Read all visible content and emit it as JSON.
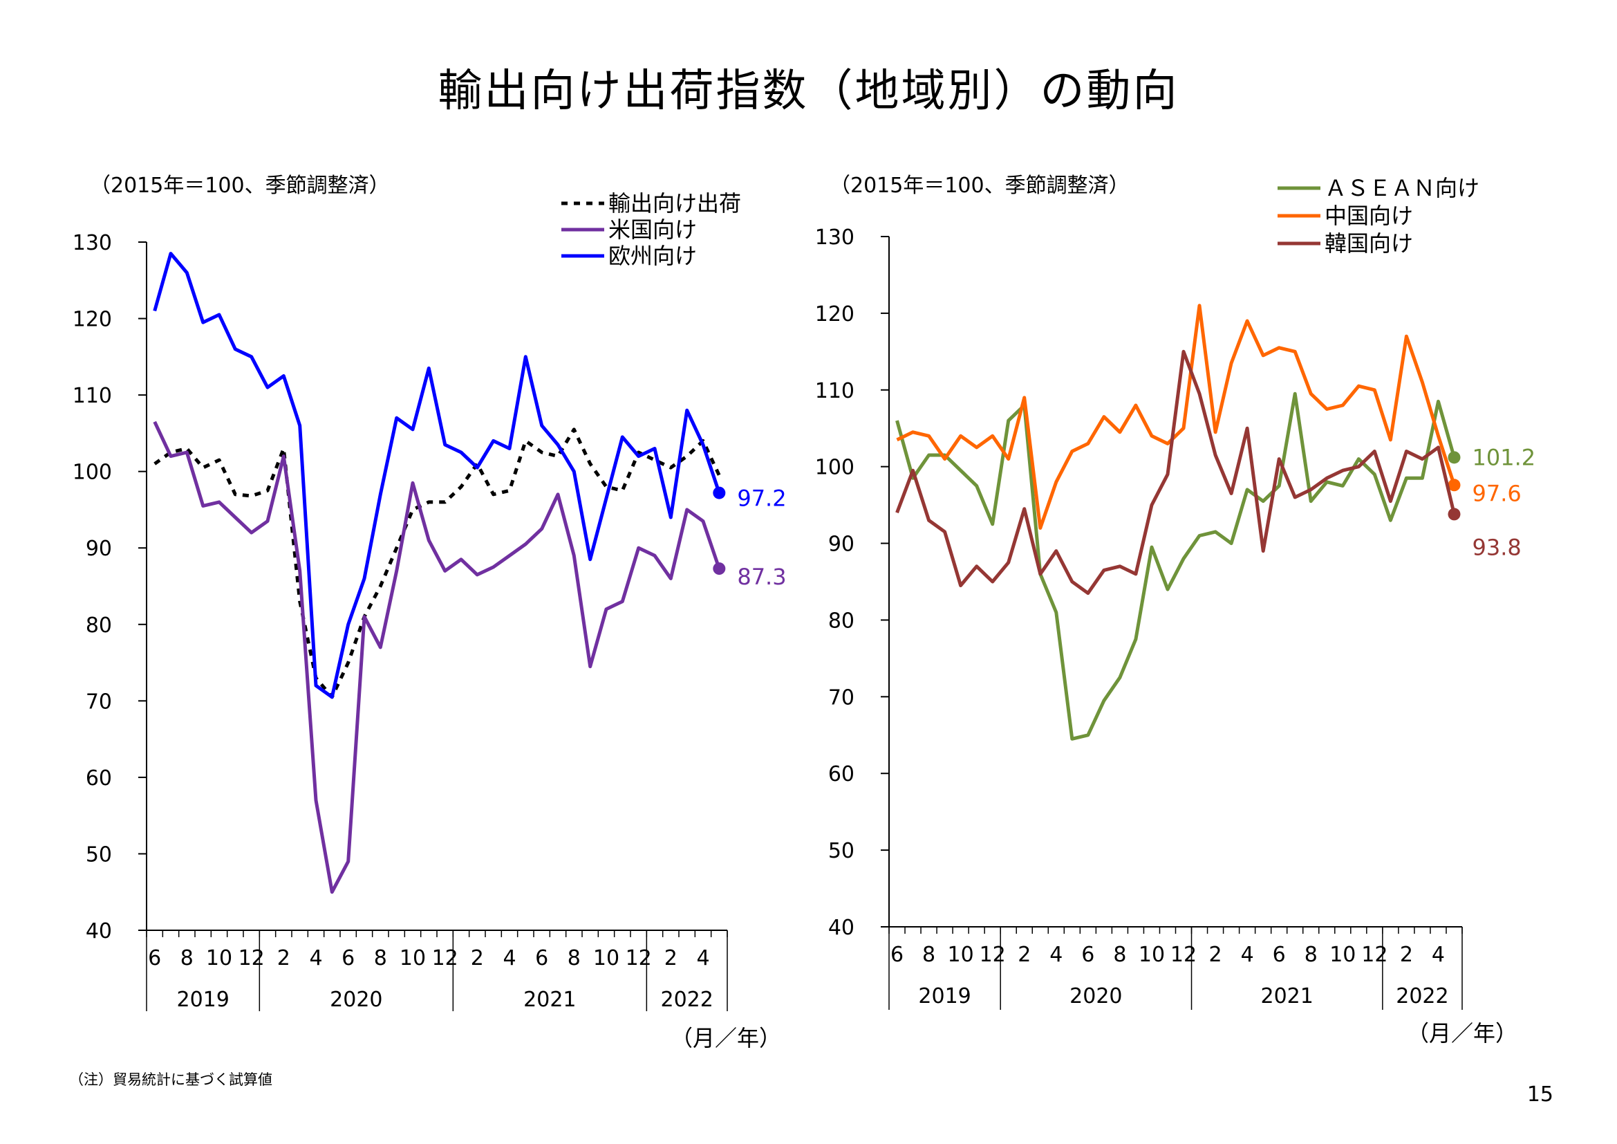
{
  "title": "輸出向け出荷指数（地域別）の動向",
  "note": "（注）貿易統計に基づく試算値",
  "page_number": "15",
  "chart_data": [
    {
      "type": "line",
      "unit_label": "（2015年＝100、季節調整済）",
      "x_axis_label": "（月／年）",
      "ylim": [
        40,
        130
      ],
      "y_ticks": [
        "130",
        "120",
        "110",
        "100",
        "90",
        "80",
        "70",
        "60",
        "50",
        "40"
      ],
      "month_labels": [
        "6",
        "8",
        "10",
        "12",
        "2",
        "4",
        "6",
        "8",
        "10",
        "12",
        "2",
        "4",
        "6",
        "8",
        "10",
        "12",
        "2",
        "4"
      ],
      "year_labels": [
        "2019",
        "2020",
        "2021",
        "2022"
      ],
      "legend_position": "top-right",
      "x": [
        "2019-06",
        "2019-07",
        "2019-08",
        "2019-09",
        "2019-10",
        "2019-11",
        "2019-12",
        "2020-01",
        "2020-02",
        "2020-03",
        "2020-04",
        "2020-05",
        "2020-06",
        "2020-07",
        "2020-08",
        "2020-09",
        "2020-10",
        "2020-11",
        "2020-12",
        "2021-01",
        "2021-02",
        "2021-03",
        "2021-04",
        "2021-05",
        "2021-06",
        "2021-07",
        "2021-08",
        "2021-09",
        "2021-10",
        "2021-11",
        "2021-12",
        "2022-01",
        "2022-02",
        "2022-03",
        "2022-04",
        "2022-05"
      ],
      "series": [
        {
          "name": "輸出向け出荷",
          "color": "#000000",
          "dashed": true,
          "values": [
            101,
            102.5,
            103,
            100.5,
            101.5,
            97,
            96.8,
            97.5,
            103,
            83,
            73,
            70.5,
            75,
            81,
            85,
            90,
            95,
            96,
            96,
            98,
            101,
            97,
            97.5,
            104,
            102.5,
            102,
            105.5,
            101,
            98,
            97.5,
            102.5,
            101.5,
            100.5,
            102,
            104,
            99.5
          ]
        },
        {
          "name": "米国向け",
          "color": "#7030a0",
          "dashed": false,
          "end_label": "87.3",
          "values": [
            106.5,
            102,
            102.5,
            95.5,
            96,
            94,
            92,
            93.5,
            102,
            87,
            57,
            45,
            49,
            81,
            77,
            87,
            98.5,
            91,
            87,
            88.5,
            86.5,
            87.5,
            89,
            90.5,
            92.5,
            97,
            89,
            74.5,
            82,
            83,
            90,
            89,
            86,
            95,
            93.5,
            87.3
          ]
        },
        {
          "name": "欧州向け",
          "color": "#0000ff",
          "dashed": false,
          "end_label": "97.2",
          "values": [
            121,
            128.5,
            126,
            119.5,
            120.5,
            116,
            115,
            111,
            112.5,
            106,
            72,
            70.5,
            80,
            86,
            97,
            107,
            105.5,
            113.5,
            103.5,
            102.5,
            100.5,
            104,
            103,
            115,
            106,
            103.5,
            100,
            88.5,
            96.5,
            104.5,
            102,
            103,
            94,
            108,
            103.5,
            97.2
          ]
        }
      ]
    },
    {
      "type": "line",
      "unit_label": "（2015年＝100、季節調整済）",
      "x_axis_label": "（月／年）",
      "ylim": [
        40,
        130
      ],
      "y_ticks": [
        "130",
        "120",
        "110",
        "100",
        "90",
        "80",
        "70",
        "60",
        "50",
        "40"
      ],
      "month_labels": [
        "6",
        "8",
        "10",
        "12",
        "2",
        "4",
        "6",
        "8",
        "10",
        "12",
        "2",
        "4",
        "6",
        "8",
        "10",
        "12",
        "2",
        "4"
      ],
      "year_labels": [
        "2019",
        "2020",
        "2021",
        "2022"
      ],
      "legend_position": "top-right",
      "x": [
        "2019-06",
        "2019-07",
        "2019-08",
        "2019-09",
        "2019-10",
        "2019-11",
        "2019-12",
        "2020-01",
        "2020-02",
        "2020-03",
        "2020-04",
        "2020-05",
        "2020-06",
        "2020-07",
        "2020-08",
        "2020-09",
        "2020-10",
        "2020-11",
        "2020-12",
        "2021-01",
        "2021-02",
        "2021-03",
        "2021-04",
        "2021-05",
        "2021-06",
        "2021-07",
        "2021-08",
        "2021-09",
        "2021-10",
        "2021-11",
        "2021-12",
        "2022-01",
        "2022-02",
        "2022-03",
        "2022-04",
        "2022-05"
      ],
      "series": [
        {
          "name": "ＡＳＥＡＮ向け",
          "color": "#6f933a",
          "dashed": false,
          "end_label": "101.2",
          "values": [
            106,
            98.5,
            101.5,
            101.5,
            99.5,
            97.5,
            92.5,
            106,
            108,
            86,
            81,
            64.5,
            65,
            69.5,
            72.5,
            77.5,
            89.5,
            84,
            88,
            91,
            91.5,
            90,
            97,
            95.5,
            97.5,
            109.5,
            95.5,
            98,
            97.5,
            101,
            99,
            93,
            98.5,
            98.5,
            108.5,
            101.2
          ]
        },
        {
          "name": "中国向け",
          "color": "#ff6600",
          "dashed": false,
          "end_label": "97.6",
          "values": [
            103.5,
            104.5,
            104,
            101,
            104,
            102.5,
            104,
            101,
            109,
            92,
            98,
            102,
            103,
            106.5,
            104.5,
            108,
            104,
            103,
            105,
            121,
            104.5,
            113.5,
            119,
            114.5,
            115.5,
            115,
            109.5,
            107.5,
            108,
            110.5,
            110,
            103.5,
            117,
            111,
            104,
            97.6
          ]
        },
        {
          "name": "韓国向け",
          "color": "#953734",
          "dashed": false,
          "end_label": "93.8",
          "values": [
            94,
            99.5,
            93,
            91.5,
            84.5,
            87,
            85,
            87.5,
            94.5,
            86,
            89,
            85,
            83.5,
            86.5,
            87,
            86,
            95,
            99,
            115,
            109.5,
            101.5,
            96.5,
            105,
            89,
            101,
            96,
            97,
            98.5,
            99.5,
            100,
            102,
            95.5,
            102,
            101,
            102.5,
            93.8
          ]
        }
      ]
    }
  ]
}
